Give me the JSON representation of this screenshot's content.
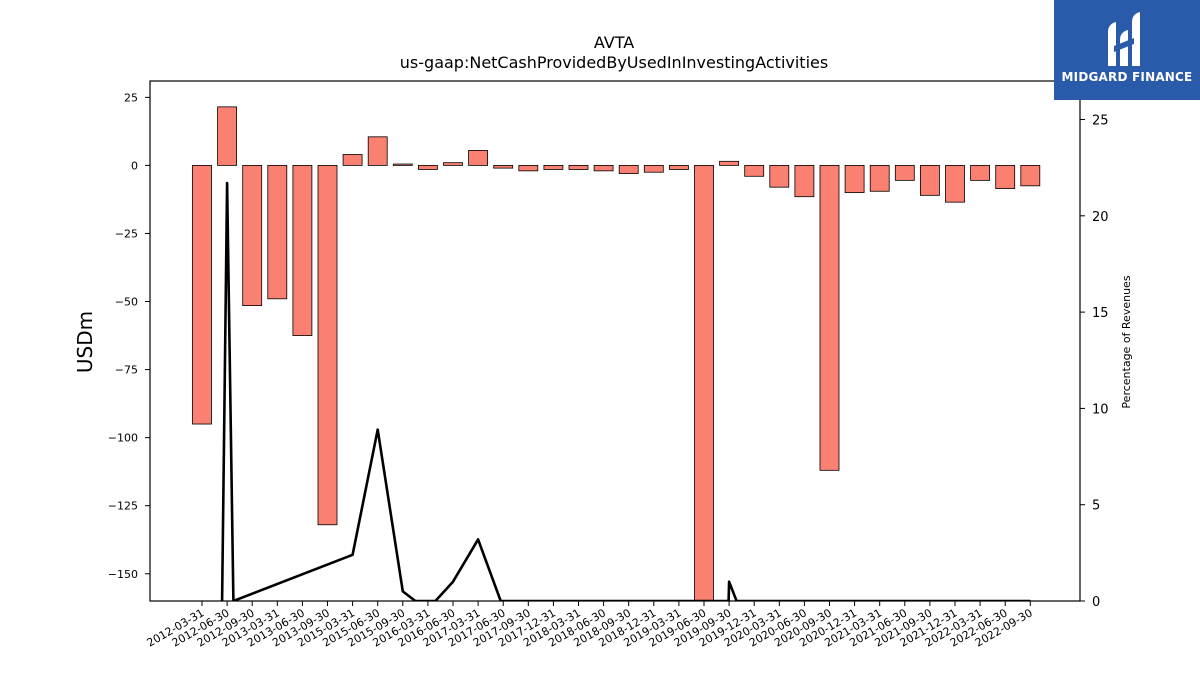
{
  "chart_data": {
    "type": "bar",
    "title": "AVTA",
    "subtitle": "us-gaap:NetCashProvidedByUsedInInvestingActivities",
    "ylabel": "USDm",
    "y2label": "Percentage of Revenues",
    "ylim": [
      -160,
      31
    ],
    "y2lim": [
      0,
      27
    ],
    "yticks": [
      25,
      0,
      -25,
      -50,
      -75,
      -100,
      -125,
      -150
    ],
    "y2ticks": [
      0,
      5,
      10,
      15,
      20,
      25
    ],
    "categories": [
      "2012-03-31",
      "2012-06-30",
      "2012-09-30",
      "2013-03-31",
      "2013-06-30",
      "2013-09-30",
      "2015-03-31",
      "2015-06-30",
      "2015-09-30",
      "2016-03-31",
      "2016-06-30",
      "2017-03-31",
      "2017-06-30",
      "2017-09-30",
      "2017-12-31",
      "2018-03-31",
      "2018-06-30",
      "2018-09-30",
      "2018-12-31",
      "2019-03-31",
      "2019-06-30",
      "2019-09-30",
      "2019-12-31",
      "2020-03-31",
      "2020-06-30",
      "2020-09-30",
      "2020-12-31",
      "2021-03-31",
      "2021-06-30",
      "2021-09-30",
      "2021-12-31",
      "2022-03-31",
      "2022-06-30",
      "2022-09-30"
    ],
    "series": [
      {
        "name": "",
        "type": "bar",
        "axis": "left",
        "color": "#FA8072",
        "values": [
          -95,
          21.5,
          -51.5,
          -49,
          -62.5,
          -132,
          4,
          10.5,
          0.5,
          -1.5,
          1,
          5.5,
          -1,
          -2,
          -1.5,
          -1.5,
          -2,
          -3,
          -2.5,
          -1.5,
          -165,
          1.5,
          -4,
          -8,
          -11.5,
          -112,
          -10,
          -9.5,
          -5.5,
          -11,
          -13.5,
          -5.5,
          -8.5,
          -7.5
        ]
      },
      {
        "name": "",
        "type": "line",
        "axis": "right",
        "color": "#000000",
        "points": [
          [
            0.8,
            0
          ],
          [
            1,
            21.7
          ],
          [
            1.25,
            0
          ],
          [
            6,
            2.4
          ],
          [
            7,
            8.9
          ],
          [
            8,
            0.5
          ],
          [
            8.5,
            0
          ],
          [
            9.3,
            0
          ],
          [
            10,
            1
          ],
          [
            11,
            3.2
          ],
          [
            11.9,
            0
          ],
          [
            20.98,
            0
          ],
          [
            21,
            1
          ],
          [
            21.3,
            0
          ],
          [
            33,
            0
          ]
        ]
      }
    ],
    "grid": false,
    "legend": "none"
  },
  "logo": {
    "text": "MIDGARD FINANCE",
    "bg_color": "#2A5BAA"
  }
}
